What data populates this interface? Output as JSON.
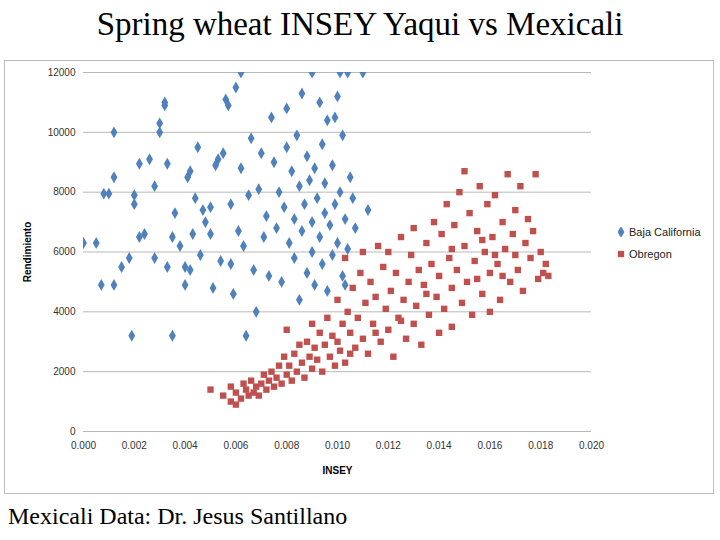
{
  "chart_data": {
    "type": "scatter",
    "title": "Spring wheat INSEY Yaqui vs Mexicali",
    "caption": "Mexicali Data: Dr. Jesus Santillano",
    "x_label": "INSEY",
    "y_label": "Rendimiento",
    "xlim": [
      0,
      0.02
    ],
    "xticks": [
      {
        "value": 0,
        "label": "0.000"
      },
      {
        "value": 0.002,
        "label": "0.002"
      },
      {
        "value": 0.004,
        "label": "0.004"
      },
      {
        "value": 0.006,
        "label": "0.006"
      },
      {
        "value": 0.008,
        "label": "0.008"
      },
      {
        "value": 0.01,
        "label": "0.010"
      },
      {
        "value": 0.012,
        "label": "0.012"
      },
      {
        "value": 0.014,
        "label": "0.014"
      },
      {
        "value": 0.016,
        "label": "0.016"
      },
      {
        "value": 0.018,
        "label": "0.018"
      },
      {
        "value": 0.02,
        "label": "0.020"
      }
    ],
    "ylim": [
      0,
      12000
    ],
    "yticks": [
      0,
      2000,
      4000,
      6000,
      8000,
      10000,
      12000
    ],
    "grid": true,
    "legend": "right",
    "series": [
      {
        "name": "Baja California",
        "color": "#4f81bd",
        "marker": "diamond",
        "x": [
          0.0005,
          0.0,
          0.0008,
          0.001,
          0.0007,
          0.0012,
          0.0012,
          0.0012,
          0.0015,
          0.0018,
          0.002,
          0.002,
          0.0022,
          0.0022,
          0.0024,
          0.0019,
          0.0026,
          0.0028,
          0.0028,
          0.003,
          0.003,
          0.0032,
          0.0032,
          0.0033,
          0.0033,
          0.0035,
          0.0035,
          0.0036,
          0.0038,
          0.004,
          0.004,
          0.0041,
          0.0042,
          0.0042,
          0.0043,
          0.0044,
          0.0045,
          0.0046,
          0.0047,
          0.0048,
          0.005,
          0.005,
          0.0051,
          0.0052,
          0.0053,
          0.0054,
          0.0055,
          0.0056,
          0.0057,
          0.0058,
          0.0058,
          0.0059,
          0.006,
          0.0061,
          0.0062,
          0.0062,
          0.0063,
          0.0064,
          0.0065,
          0.0066,
          0.0067,
          0.0068,
          0.0069,
          0.007,
          0.0071,
          0.0072,
          0.0073,
          0.0074,
          0.0075,
          0.0076,
          0.0077,
          0.0078,
          0.0079,
          0.008,
          0.008,
          0.0081,
          0.0082,
          0.0083,
          0.0083,
          0.0084,
          0.0085,
          0.0085,
          0.0086,
          0.0086,
          0.0087,
          0.0088,
          0.0088,
          0.0089,
          0.009,
          0.009,
          0.009,
          0.0091,
          0.0091,
          0.0092,
          0.0093,
          0.0093,
          0.0094,
          0.0094,
          0.0095,
          0.0095,
          0.0096,
          0.0096,
          0.0097,
          0.0098,
          0.0098,
          0.0099,
          0.01,
          0.01,
          0.0101,
          0.0101,
          0.0102,
          0.0102,
          0.0103,
          0.0104,
          0.0104,
          0.0105,
          0.0106,
          0.0107,
          0.011,
          0.0112,
          0.0103,
          0.0099
        ],
        "values": [
          6300,
          6300,
          7950,
          7950,
          4900,
          4900,
          8500,
          10000,
          5500,
          5800,
          7900,
          7600,
          8950,
          6500,
          6600,
          3200,
          9100,
          5800,
          8200,
          10300,
          10000,
          10900,
          11000,
          5500,
          8950,
          3200,
          6500,
          7300,
          6200,
          4900,
          5500,
          8500,
          8700,
          5400,
          6600,
          7800,
          9500,
          5900,
          7400,
          7000,
          7500,
          6600,
          4800,
          8900,
          9100,
          5700,
          9300,
          11100,
          10900,
          7600,
          5600,
          4600,
          11500,
          6700,
          12000,
          8800,
          6200,
          3200,
          7900,
          9800,
          5400,
          4000,
          8100,
          9300,
          6500,
          7200,
          5200,
          10500,
          9000,
          6800,
          8000,
          5000,
          7500,
          10800,
          9500,
          6300,
          8700,
          7100,
          5800,
          9900,
          4400,
          8200,
          6700,
          11300,
          7600,
          5300,
          9200,
          8400,
          12000,
          7000,
          6000,
          4900,
          8800,
          7800,
          11000,
          6500,
          9600,
          5600,
          8300,
          7300,
          10400,
          4700,
          6900,
          8900,
          5900,
          7600,
          11200,
          6300,
          8000,
          12000,
          9900,
          5200,
          7100,
          12000,
          6100,
          8500,
          7800,
          6800,
          12000,
          7400,
          4900,
          10500
        ]
      },
      {
        "name": "Obregon",
        "color": "#c0504d",
        "marker": "square",
        "x": [
          0.005,
          0.0055,
          0.0058,
          0.0058,
          0.006,
          0.006,
          0.0062,
          0.0063,
          0.0064,
          0.0065,
          0.0066,
          0.0067,
          0.0068,
          0.0069,
          0.007,
          0.0071,
          0.0072,
          0.0073,
          0.0074,
          0.0075,
          0.0076,
          0.0077,
          0.0078,
          0.0079,
          0.008,
          0.008,
          0.0081,
          0.0082,
          0.0083,
          0.0084,
          0.0085,
          0.0086,
          0.0087,
          0.0088,
          0.0089,
          0.009,
          0.009,
          0.0091,
          0.0092,
          0.0093,
          0.0094,
          0.0095,
          0.0096,
          0.0097,
          0.0098,
          0.0099,
          0.01,
          0.01,
          0.0101,
          0.0102,
          0.0103,
          0.0103,
          0.0104,
          0.0105,
          0.0106,
          0.0107,
          0.0108,
          0.0109,
          0.011,
          0.011,
          0.0111,
          0.0112,
          0.0113,
          0.0114,
          0.0115,
          0.0116,
          0.0117,
          0.0118,
          0.0119,
          0.012,
          0.012,
          0.0121,
          0.0122,
          0.0123,
          0.0124,
          0.0125,
          0.0126,
          0.0127,
          0.0128,
          0.0129,
          0.013,
          0.013,
          0.0131,
          0.0132,
          0.0133,
          0.0134,
          0.0135,
          0.0136,
          0.0137,
          0.0138,
          0.0139,
          0.014,
          0.014,
          0.0141,
          0.0142,
          0.0143,
          0.0144,
          0.0145,
          0.0145,
          0.0146,
          0.0147,
          0.0148,
          0.0149,
          0.015,
          0.015,
          0.0151,
          0.0152,
          0.0153,
          0.0154,
          0.0155,
          0.0156,
          0.0157,
          0.0158,
          0.0159,
          0.016,
          0.016,
          0.0161,
          0.0162,
          0.0163,
          0.0164,
          0.0165,
          0.0166,
          0.0167,
          0.0168,
          0.0169,
          0.017,
          0.0171,
          0.0172,
          0.0173,
          0.0174,
          0.0175,
          0.0176,
          0.0177,
          0.0178,
          0.0179,
          0.018,
          0.0181,
          0.0182,
          0.0183,
          0.017,
          0.0165,
          0.0155,
          0.0145,
          0.0135,
          0.0125,
          0.0115,
          0.0105,
          0.0157,
          0.0162
        ],
        "values": [
          1400,
          1200,
          1500,
          1000,
          1300,
          900,
          1100,
          1600,
          1400,
          1200,
          1700,
          1300,
          1500,
          1200,
          1600,
          1900,
          1400,
          1700,
          2000,
          1500,
          1800,
          2200,
          1600,
          2500,
          1900,
          3400,
          2200,
          1700,
          2600,
          2000,
          2900,
          2300,
          1800,
          3000,
          2500,
          2100,
          3600,
          2800,
          2400,
          3300,
          2000,
          2900,
          3800,
          2500,
          3200,
          2200,
          4400,
          3000,
          2700,
          3600,
          5800,
          2300,
          4000,
          3300,
          4800,
          2800,
          3800,
          5300,
          3100,
          6000,
          4300,
          2600,
          5000,
          3600,
          4500,
          6200,
          3000,
          5500,
          4100,
          3400,
          6000,
          4700,
          2500,
          5300,
          3800,
          6500,
          4400,
          3100,
          5000,
          5900,
          3600,
          6800,
          4200,
          5400,
          2900,
          4900,
          6300,
          3900,
          5600,
          7000,
          4500,
          3300,
          5200,
          6600,
          4100,
          7600,
          5800,
          3500,
          4800,
          6900,
          5400,
          8000,
          4300,
          6200,
          8700,
          5000,
          7300,
          3900,
          5700,
          6700,
          8200,
          4600,
          6000,
          7600,
          5300,
          4000,
          6500,
          7900,
          5600,
          4400,
          7000,
          6100,
          8600,
          5000,
          6600,
          7400,
          5400,
          8200,
          4700,
          6300,
          7100,
          5800,
          6700,
          8600,
          5100,
          6000,
          5300,
          5600,
          5200,
          5900,
          5200,
          5100,
          6100,
          4600,
          3700,
          3300,
          2600,
          6400,
          5900
        ]
      }
    ]
  }
}
